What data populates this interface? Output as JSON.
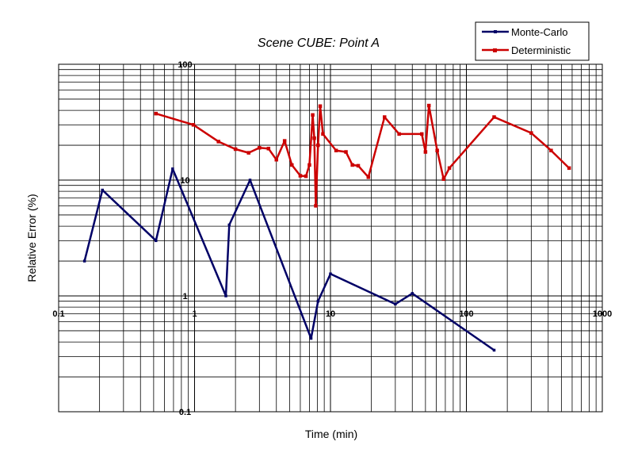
{
  "chart_data": {
    "type": "line",
    "title": "Scene CUBE:  Point A",
    "xlabel": "Time (min)",
    "ylabel": "Relative Error (%)",
    "x_scale": "log",
    "y_scale": "log",
    "xlim": [
      0.1,
      1000
    ],
    "ylim": [
      0.1,
      100
    ],
    "x_tick_labels": [
      "0.1",
      "1",
      "10",
      "100",
      "1000"
    ],
    "y_tick_labels": [
      "0.1",
      "1",
      "10",
      "100"
    ],
    "x_ticks": [
      0.1,
      1,
      10,
      100,
      1000
    ],
    "y_ticks": [
      0.1,
      1,
      10,
      100
    ],
    "grid": "major and minor on both axes",
    "legend_placement": "top-right, outside plot",
    "series": [
      {
        "name": "Monte-Carlo",
        "color": "#000066",
        "marker": "small",
        "points": [
          [
            0.155,
            2.0
          ],
          [
            0.21,
            8.2
          ],
          [
            0.52,
            3.0
          ],
          [
            0.69,
            12.5
          ],
          [
            1.7,
            1.0
          ],
          [
            1.8,
            4.1
          ],
          [
            2.56,
            10.0
          ],
          [
            7.2,
            0.43
          ],
          [
            8.1,
            0.9
          ],
          [
            10.0,
            1.55
          ],
          [
            30.0,
            0.85
          ],
          [
            40.0,
            1.05
          ],
          [
            160.0,
            0.34
          ]
        ]
      },
      {
        "name": "Deterministic",
        "color": "#cc0000",
        "marker": "square",
        "points": [
          [
            0.52,
            37.5
          ],
          [
            0.98,
            30.0
          ],
          [
            1.5,
            21.5
          ],
          [
            2.0,
            18.5
          ],
          [
            2.5,
            17.2
          ],
          [
            3.0,
            19.0
          ],
          [
            3.5,
            18.7
          ],
          [
            4.0,
            15.0
          ],
          [
            4.6,
            21.8
          ],
          [
            5.2,
            13.5
          ],
          [
            6.0,
            10.9
          ],
          [
            6.6,
            10.8
          ],
          [
            7.0,
            13.5
          ],
          [
            7.4,
            36.5
          ],
          [
            7.6,
            23.0
          ],
          [
            7.8,
            6.0
          ],
          [
            8.1,
            20.0
          ],
          [
            8.4,
            43.5
          ],
          [
            8.8,
            25.0
          ],
          [
            11.0,
            18.0
          ],
          [
            13.0,
            17.5
          ],
          [
            14.5,
            13.5
          ],
          [
            16.0,
            13.3
          ],
          [
            19.0,
            10.6
          ],
          [
            25.0,
            35.0
          ],
          [
            32.0,
            25.0
          ],
          [
            47.0,
            25.0
          ],
          [
            50.0,
            17.5
          ],
          [
            53.0,
            44.0
          ],
          [
            61.0,
            18.0
          ],
          [
            68.0,
            10.2
          ],
          [
            75.0,
            12.7
          ],
          [
            160.0,
            35.0
          ],
          [
            300.0,
            25.5
          ],
          [
            420.0,
            18.0
          ],
          [
            570.0,
            12.7
          ]
        ]
      }
    ]
  }
}
